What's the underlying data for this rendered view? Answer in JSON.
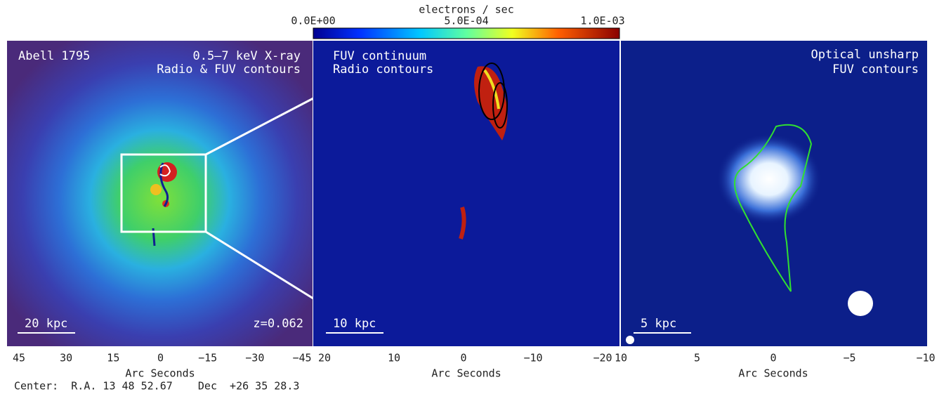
{
  "colorbar": {
    "label": "electrons / sec",
    "ticks": [
      "0.0E+00",
      "5.0E-04",
      "1.0E-03"
    ]
  },
  "panels": [
    {
      "labels": [
        "Abell 1795",
        "0.5–7 keV X-ray",
        "Radio & FUV contours"
      ],
      "scale_bar": "20 kpc",
      "redshift": "z=0.062",
      "x_ticks": [
        "45",
        "30",
        "15",
        "0",
        "−15",
        "−30",
        "−45"
      ],
      "x_axis_label": "Arc Seconds"
    },
    {
      "labels": [
        "FUV continuum",
        "Radio contours"
      ],
      "scale_bar": "10 kpc",
      "x_ticks": [
        "20",
        "10",
        "0",
        "−10",
        "−20"
      ],
      "x_axis_label": "Arc Seconds"
    },
    {
      "labels": [
        "Optical unsharp",
        "FUV contours"
      ],
      "scale_bar": "5 kpc",
      "x_ticks": [
        "10",
        "5",
        "0",
        "−5",
        "−10"
      ],
      "x_axis_label": "Arc Seconds"
    }
  ],
  "center": "Center:  R.A. 13 48 52.67    Dec  +26 35 28.3"
}
